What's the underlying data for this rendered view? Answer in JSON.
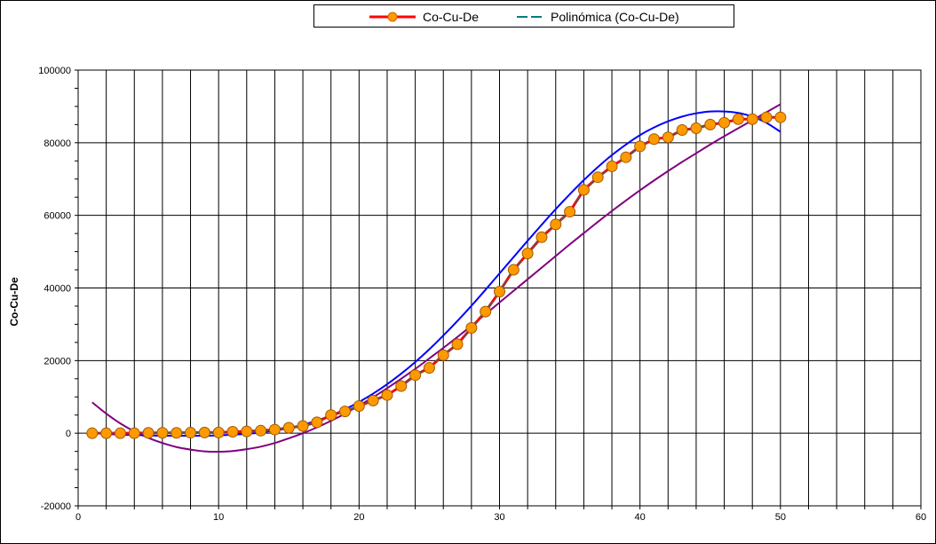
{
  "chart_data": {
    "type": "scatter",
    "xlabel": "",
    "ylabel": "Co-Cu-De",
    "xlim": [
      0,
      60
    ],
    "ylim": [
      -20000,
      100000
    ],
    "x_ticks": [
      0,
      10,
      20,
      30,
      40,
      50,
      60
    ],
    "y_ticks": [
      -20000,
      0,
      20000,
      40000,
      60000,
      80000,
      100000
    ],
    "x_tick_labels": [
      "0",
      "10",
      "20",
      "30",
      "40",
      "50",
      "60"
    ],
    "y_tick_labels": [
      "-20000",
      "0",
      "20000",
      "40000",
      "60000",
      "80000",
      "100000"
    ],
    "grid": true,
    "legend_position": "top-center",
    "legend": [
      {
        "label": "Co-Cu-De",
        "style": "line-marker",
        "color": "#ff0000",
        "marker_color": "#ff9900"
      },
      {
        "label": "Polinómica (Co-Cu-De)",
        "style": "dashed",
        "color": "#007f7f"
      }
    ],
    "series": [
      {
        "name": "Co-Cu-De",
        "color": "#ff0000",
        "marker_color": "#ff9900",
        "x": [
          1,
          2,
          3,
          4,
          5,
          6,
          7,
          8,
          9,
          10,
          11,
          12,
          13,
          14,
          15,
          16,
          17,
          18,
          19,
          20,
          21,
          22,
          23,
          24,
          25,
          26,
          27,
          28,
          29,
          30,
          31,
          32,
          33,
          34,
          35,
          36,
          37,
          38,
          39,
          40,
          41,
          42,
          43,
          44,
          45,
          46,
          47,
          48,
          49,
          50
        ],
        "y": [
          0,
          0,
          0,
          0,
          100,
          100,
          100,
          150,
          200,
          200,
          400,
          500,
          700,
          1000,
          1500,
          2000,
          3000,
          5000,
          6000,
          7500,
          9000,
          10500,
          13000,
          16000,
          18000,
          21500,
          24500,
          29000,
          33500,
          39000,
          45000,
          49500,
          54000,
          57500,
          61000,
          67000,
          70500,
          73500,
          76000,
          79000,
          81000,
          81500,
          83500,
          84000,
          85000,
          85500,
          86500,
          86500,
          87000,
          87000
        ]
      }
    ],
    "trendlines": [
      {
        "name": "",
        "color": "#800080",
        "x": [
          1,
          2,
          3,
          4,
          5,
          6,
          7,
          8,
          9,
          10,
          11,
          12,
          13,
          14,
          15,
          16,
          17,
          18,
          19,
          20,
          21,
          22,
          23,
          24,
          25,
          26,
          27,
          28,
          29,
          30,
          31,
          32,
          33,
          34,
          35,
          36,
          37,
          38,
          39,
          40,
          41,
          42,
          43,
          44,
          45,
          46,
          47,
          48,
          49,
          50
        ],
        "y": [
          8500,
          5400,
          2700,
          500,
          -1300,
          -2700,
          -3800,
          -4500,
          -5000,
          -5100,
          -4900,
          -4400,
          -3700,
          -2700,
          -1400,
          0,
          1600,
          3400,
          5400,
          7600,
          9900,
          12400,
          15000,
          17700,
          20600,
          23500,
          26500,
          29600,
          32800,
          36000,
          39200,
          42400,
          45600,
          48800,
          52000,
          55100,
          58200,
          61200,
          64100,
          66900,
          69600,
          72200,
          74700,
          77100,
          79500,
          81800,
          84000,
          86200,
          88400,
          90600
        ]
      },
      {
        "name": "",
        "color": "#0000ff",
        "x": [
          1,
          2,
          3,
          4,
          5,
          6,
          7,
          8,
          9,
          10,
          11,
          12,
          13,
          14,
          15,
          16,
          17,
          18,
          19,
          20,
          21,
          22,
          23,
          24,
          25,
          26,
          27,
          28,
          29,
          30,
          31,
          32,
          33,
          34,
          35,
          36,
          37,
          38,
          39,
          40,
          41,
          42,
          43,
          44,
          45,
          46,
          47,
          48,
          49,
          50
        ],
        "y": [
          0,
          -200,
          -400,
          -500,
          -600,
          -700,
          -700,
          -700,
          -700,
          -600,
          -400,
          -200,
          200,
          700,
          1400,
          2300,
          3500,
          4900,
          6600,
          8600,
          10900,
          13500,
          16400,
          19600,
          23100,
          26900,
          30900,
          35100,
          39500,
          44000,
          48500,
          53000,
          57400,
          61700,
          65800,
          69700,
          73300,
          76600,
          79500,
          82100,
          84200,
          85900,
          87200,
          88100,
          88600,
          88600,
          88200,
          87200,
          85500,
          83000
        ]
      }
    ]
  }
}
